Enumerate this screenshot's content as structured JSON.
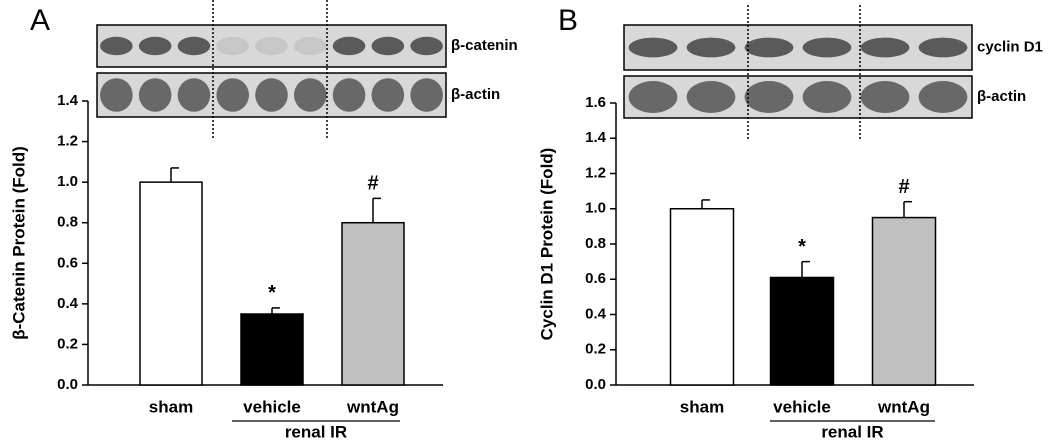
{
  "chart_data": [
    {
      "type": "bar",
      "panel": "A",
      "y_label": "β-Catenin Protein (Fold)",
      "categories": [
        "sham",
        "vehicle",
        "wntAg"
      ],
      "values": [
        1.0,
        0.35,
        0.8
      ],
      "errors": [
        0.07,
        0.03,
        0.12
      ],
      "colors": [
        "#ffffff",
        "#000000",
        "#c0c0c0"
      ],
      "bar_labels": [
        null,
        "*",
        "#"
      ],
      "group_label": "renal IR",
      "blot_labels": [
        "β-catenin",
        "β-actin"
      ],
      "ylim": [
        0,
        1.4
      ],
      "yticks": [
        {
          "value": 0,
          "label": "0.0"
        },
        0.2,
        0.4,
        0.6,
        0.8,
        {
          "value": 1,
          "label": "1.0"
        },
        1.2,
        1.4
      ]
    },
    {
      "type": "bar",
      "panel": "B",
      "y_label": "Cyclin D1 Protein (Fold)",
      "categories": [
        "sham",
        "vehicle",
        "wntAg"
      ],
      "values": [
        1.0,
        0.61,
        0.95
      ],
      "errors": [
        0.05,
        0.09,
        0.09
      ],
      "colors": [
        "#ffffff",
        "#000000",
        "#c0c0c0"
      ],
      "bar_labels": [
        null,
        "*",
        "#"
      ],
      "group_label": "renal IR",
      "blot_labels": [
        "cyclin D1",
        "β-actin"
      ],
      "ylim": [
        0,
        1.6
      ],
      "yticks": [
        {
          "value": 0,
          "label": "0.0"
        },
        0.2,
        0.4,
        0.6,
        0.8,
        {
          "value": 1,
          "label": "1.0"
        },
        1.2,
        1.4,
        1.6
      ]
    }
  ]
}
